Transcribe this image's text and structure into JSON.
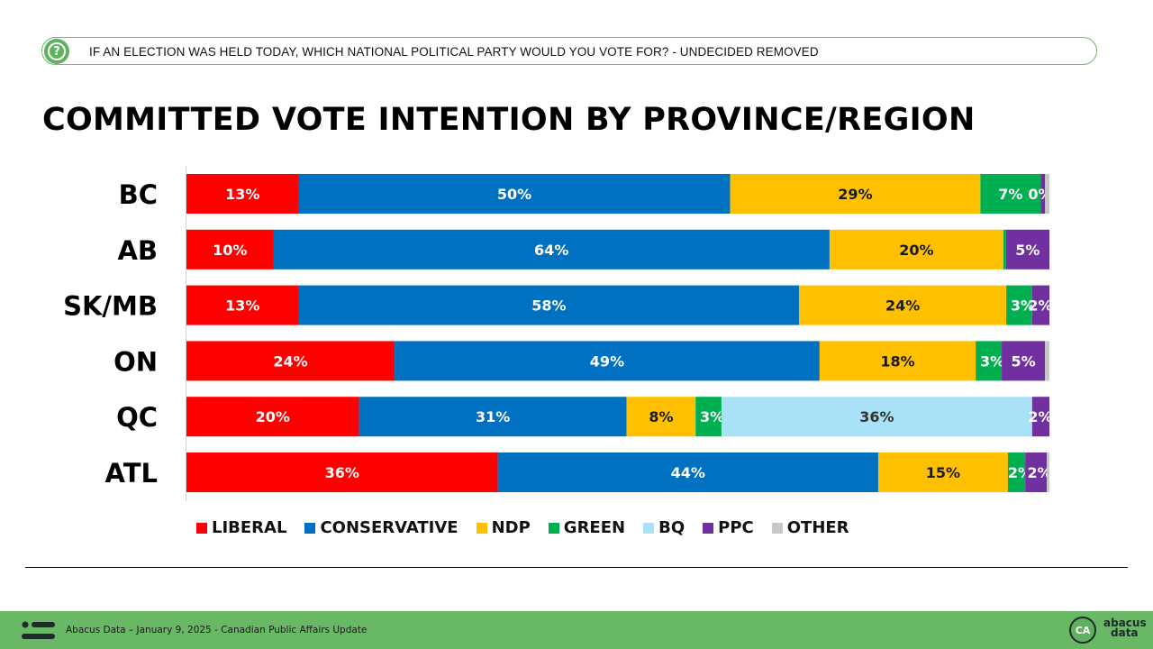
{
  "question": {
    "icon": "question-icon",
    "text": "IF AN ELECTION WAS HELD TODAY, WHICH NATIONAL POLITICAL PARTY WOULD YOU VOTE FOR? - UNDECIDED REMOVED"
  },
  "chart_data": {
    "type": "bar",
    "orientation": "horizontal",
    "stacked": true,
    "title": "COMMITTED VOTE INTENTION BY PROVINCE/REGION",
    "categories": [
      "BC",
      "AB",
      "SK/MB",
      "ON",
      "QC",
      "ATL"
    ],
    "series": [
      {
        "name": "LIBERAL",
        "color": "#ff0000",
        "label_color": "#ffffff",
        "values": [
          13,
          10,
          13,
          24,
          20,
          36
        ],
        "labels": [
          "13%",
          "10%",
          "13%",
          "24%",
          "20%",
          "36%"
        ]
      },
      {
        "name": "CONSERVATIVE",
        "color": "#0070c0",
        "label_color": "#ffffff",
        "values": [
          50,
          64,
          58,
          49,
          31,
          44
        ],
        "labels": [
          "50%",
          "64%",
          "58%",
          "49%",
          "31%",
          "44%"
        ]
      },
      {
        "name": "NDP",
        "color": "#ffc000",
        "label_color": "#1a1a1a",
        "values": [
          29,
          20,
          24,
          18,
          8,
          15
        ],
        "labels": [
          "29%",
          "20%",
          "24%",
          "18%",
          "8%",
          "15%"
        ]
      },
      {
        "name": "GREEN",
        "color": "#00b050",
        "label_color": "#ffffff",
        "values": [
          7,
          0.3,
          3,
          3,
          3,
          2
        ],
        "labels": [
          "7%",
          "",
          "3%",
          "3%",
          "3%",
          "2%"
        ]
      },
      {
        "name": "BQ",
        "color": "#a9e2f7",
        "label_color": "#333333",
        "values": [
          0,
          0,
          0,
          0,
          36,
          0
        ],
        "labels": [
          "",
          "",
          "",
          "",
          "36%",
          ""
        ]
      },
      {
        "name": "PPC",
        "color": "#7030a0",
        "label_color": "#ffffff",
        "values": [
          0.5,
          5,
          2,
          5,
          2,
          2.5
        ],
        "labels": [
          "0%",
          "5%",
          "2%",
          "5%",
          "2%",
          "2%"
        ]
      },
      {
        "name": "OTHER",
        "color": "#c8c8c8",
        "label_color": "#333333",
        "values": [
          0.5,
          0,
          0,
          0.5,
          0,
          0.3
        ],
        "labels": [
          "",
          "",
          "",
          "",
          "",
          ""
        ]
      }
    ],
    "xlim": [
      0,
      100
    ],
    "legend_position": "bottom",
    "grid": false
  },
  "footer": {
    "icon": "abacus-mark-icon",
    "text": "Abacus Data – January 9, 2025 - Canadian Public Affairs Update",
    "logo_initials": "CA",
    "logo_word_1": "abacus",
    "logo_word_2": "data"
  },
  "colors": {
    "accent_green": "#68b866"
  }
}
